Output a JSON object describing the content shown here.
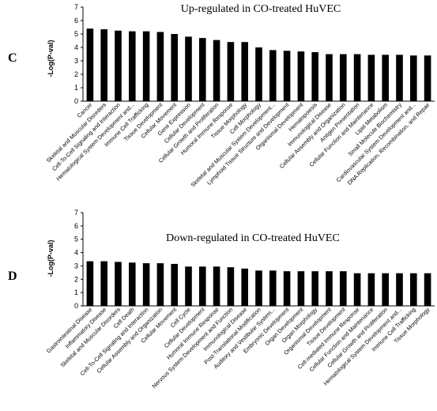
{
  "chart_data": [
    {
      "type": "bar",
      "panel": "C",
      "title": "Up-regulated  in  CO-treated HuVEC",
      "ylabel": "-Log(P-val)",
      "ylim": [
        0,
        7
      ],
      "yticks": [
        "0",
        "1",
        "2",
        "3",
        "4",
        "5",
        "6",
        "7"
      ],
      "grid": false,
      "bar_color": "#000000",
      "categories": [
        "Cancer",
        "Skeletal and Muscular Disorders",
        "Cell-To-Cell Signaling and Interaction",
        "Hematological System Development and...",
        "Immune Cell Trafficking",
        "Tissue Development",
        "Cellular Movement",
        "Gene Expression",
        "Cellular Development",
        "Cellular Growth and Proliferation",
        "Humoral Immune Response",
        "Tissue Morphology",
        "Cell Morphology",
        "Skeletal and Muscular System Development...",
        "Lymphoid Tissue Structure and Development",
        "Organismal Development",
        "Hematopoiesis",
        "Immunological Disease",
        "Cellular Assembly and Organization",
        "Antigen Presentation",
        "Cellular Function and Maintenance",
        "Lipid Metabolism",
        "Small Molecule Biochemistry",
        "Cardiovascular System Development and...",
        "DNA Replication, Recombination, and Repair"
      ],
      "values": [
        5.4,
        5.35,
        5.25,
        5.2,
        5.2,
        5.15,
        5.0,
        4.8,
        4.7,
        4.55,
        4.4,
        4.4,
        4.0,
        3.8,
        3.75,
        3.7,
        3.65,
        3.5,
        3.5,
        3.5,
        3.45,
        3.45,
        3.45,
        3.4,
        3.4
      ]
    },
    {
      "type": "bar",
      "panel": "D",
      "title": "Down-regulated  in  CO-treated HuVEC",
      "ylabel": "-Log(P-val)",
      "ylim": [
        0,
        7
      ],
      "yticks": [
        "0",
        "1",
        "2",
        "3",
        "4",
        "5",
        "6",
        "7"
      ],
      "grid": false,
      "bar_color": "#000000",
      "categories": [
        "Gastrointestinal Disease",
        "Inflammatory Disease",
        "Skeletal and Muscular Disorders",
        "Cell Death",
        "Cell-To-Cell Signaling and Interaction",
        "Cellular Assembly and Organization",
        "Cellular Movement",
        "Cell Cycle",
        "Cellular Development",
        "Humoral Immune Response",
        "Nervous System Development and Function",
        "Immunological Disease",
        "Post-Translational Modification",
        "Auditory and Vestibular System...",
        "Embryonic Development",
        "Organ Development",
        "Organ Morphology",
        "Organismal Development",
        "Tissue Development",
        "Cell-mediated Immune Response",
        "Cellular Function and Maintenance",
        "Cellular Growth and Proliferation",
        "Hematological System Development and...",
        "Immune Cell Trafficking",
        "Tissue Morphology"
      ],
      "values": [
        3.35,
        3.35,
        3.3,
        3.25,
        3.2,
        3.2,
        3.15,
        2.95,
        2.95,
        2.95,
        2.9,
        2.8,
        2.65,
        2.65,
        2.6,
        2.6,
        2.6,
        2.6,
        2.6,
        2.45,
        2.45,
        2.45,
        2.45,
        2.45,
        2.45
      ]
    }
  ]
}
